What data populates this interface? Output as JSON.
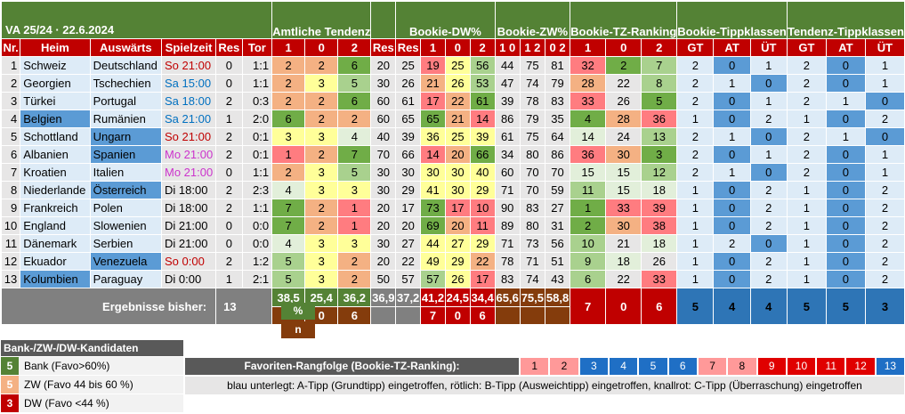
{
  "title": "VA 25/24 · 22.6.2024",
  "groups": [
    "Amtliche Tendenz",
    "Bookie-DW%",
    "Bookie-ZW%",
    "Bookie-TZ-Ranking",
    "Bookie-Tippklassen",
    "Tendenz-Tippklassen"
  ],
  "headers": [
    "Nr.",
    "Heim",
    "Auswärts",
    "Spielzeit",
    "Res",
    "Tor",
    "1",
    "0",
    "2",
    "Res",
    "Res",
    "1",
    "0",
    "2",
    "1 0",
    "1 2",
    "0 2",
    "1",
    "0",
    "2",
    "GT",
    "AT",
    "ÜT",
    "GT",
    "AT",
    "ÜT"
  ],
  "rows": [
    {
      "nr": "1",
      "home": "Schweiz",
      "away": "Deutschland",
      "time": "So 21:00",
      "res": "0",
      "tor": "1:1",
      "a1": "2",
      "a0": "2",
      "a2": "6",
      "ares": "20",
      "bres": "25",
      "d1": "19",
      "d0": "25",
      "d2": "56",
      "z10": "44",
      "z12": "75",
      "z02": "81",
      "r1": "32",
      "r0": "2",
      "r2": "7",
      "b1": "2",
      "b0": "0",
      "b2": "1",
      "t1": "2",
      "t0": "0",
      "t2": "1"
    },
    {
      "nr": "2",
      "home": "Georgien",
      "away": "Tschechien",
      "time": "Sa 15:00",
      "res": "0",
      "tor": "1:1",
      "a1": "2",
      "a0": "3",
      "a2": "5",
      "ares": "30",
      "bres": "26",
      "d1": "21",
      "d0": "26",
      "d2": "53",
      "z10": "47",
      "z12": "74",
      "z02": "79",
      "r1": "28",
      "r0": "22",
      "r2": "8",
      "b1": "2",
      "b0": "1",
      "b2": "0",
      "t1": "2",
      "t0": "0",
      "t2": "1"
    },
    {
      "nr": "3",
      "home": "Türkei",
      "away": "Portugal",
      "time": "Sa 18:00",
      "res": "2",
      "tor": "0:3",
      "a1": "2",
      "a0": "2",
      "a2": "6",
      "ares": "60",
      "bres": "61",
      "d1": "17",
      "d0": "22",
      "d2": "61",
      "z10": "39",
      "z12": "78",
      "z02": "83",
      "r1": "33",
      "r0": "26",
      "r2": "5",
      "b1": "2",
      "b0": "0",
      "b2": "1",
      "t1": "2",
      "t0": "1",
      "t2": "0"
    },
    {
      "nr": "4",
      "home": "Belgien",
      "away": "Rumänien",
      "time": "Sa 21:00",
      "res": "1",
      "tor": "2:0",
      "a1": "6",
      "a0": "2",
      "a2": "2",
      "ares": "60",
      "bres": "65",
      "d1": "65",
      "d0": "21",
      "d2": "14",
      "z10": "86",
      "z12": "79",
      "z02": "35",
      "r1": "4",
      "r0": "28",
      "r2": "36",
      "b1": "1",
      "b0": "0",
      "b2": "2",
      "t1": "1",
      "t0": "0",
      "t2": "2"
    },
    {
      "nr": "5",
      "home": "Schottland",
      "away": "Ungarn",
      "time": "So 21:00",
      "res": "2",
      "tor": "0:1",
      "a1": "3",
      "a0": "3",
      "a2": "4",
      "ares": "40",
      "bres": "39",
      "d1": "36",
      "d0": "25",
      "d2": "39",
      "z10": "61",
      "z12": "75",
      "z02": "64",
      "r1": "14",
      "r0": "24",
      "r2": "13",
      "b1": "2",
      "b0": "1",
      "b2": "0",
      "t1": "2",
      "t0": "1",
      "t2": "0"
    },
    {
      "nr": "6",
      "home": "Albanien",
      "away": "Spanien",
      "time": "Mo 21:00",
      "res": "2",
      "tor": "0:1",
      "a1": "1",
      "a0": "2",
      "a2": "7",
      "ares": "70",
      "bres": "66",
      "d1": "14",
      "d0": "20",
      "d2": "66",
      "z10": "34",
      "z12": "80",
      "z02": "86",
      "r1": "36",
      "r0": "30",
      "r2": "3",
      "b1": "2",
      "b0": "0",
      "b2": "1",
      "t1": "2",
      "t0": "0",
      "t2": "1"
    },
    {
      "nr": "7",
      "home": "Kroatien",
      "away": "Italien",
      "time": "Mo 21:00",
      "res": "0",
      "tor": "1:1",
      "a1": "2",
      "a0": "3",
      "a2": "5",
      "ares": "30",
      "bres": "30",
      "d1": "30",
      "d0": "30",
      "d2": "40",
      "z10": "60",
      "z12": "70",
      "z02": "70",
      "r1": "15",
      "r0": "15",
      "r2": "12",
      "b1": "2",
      "b0": "1",
      "b2": "0",
      "t1": "2",
      "t0": "0",
      "t2": "1"
    },
    {
      "nr": "8",
      "home": "Niederlande",
      "away": "Österreich",
      "time": "Di 18:00",
      "res": "2",
      "tor": "2:3",
      "a1": "4",
      "a0": "3",
      "a2": "3",
      "ares": "30",
      "bres": "29",
      "d1": "41",
      "d0": "30",
      "d2": "29",
      "z10": "71",
      "z12": "70",
      "z02": "59",
      "r1": "11",
      "r0": "15",
      "r2": "18",
      "b1": "1",
      "b0": "0",
      "b2": "2",
      "t1": "1",
      "t0": "0",
      "t2": "2"
    },
    {
      "nr": "9",
      "home": "Frankreich",
      "away": "Polen",
      "time": "Di 18:00",
      "res": "2",
      "tor": "1:1",
      "a1": "7",
      "a0": "2",
      "a2": "1",
      "ares": "20",
      "bres": "17",
      "d1": "73",
      "d0": "17",
      "d2": "10",
      "z10": "90",
      "z12": "83",
      "z02": "27",
      "r1": "1",
      "r0": "33",
      "r2": "39",
      "b1": "1",
      "b0": "0",
      "b2": "2",
      "t1": "1",
      "t0": "0",
      "t2": "2"
    },
    {
      "nr": "10",
      "home": "England",
      "away": "Slowenien",
      "time": "Di 21:00",
      "res": "0",
      "tor": "0:0",
      "a1": "7",
      "a0": "2",
      "a2": "1",
      "ares": "20",
      "bres": "20",
      "d1": "69",
      "d0": "20",
      "d2": "11",
      "z10": "89",
      "z12": "80",
      "z02": "31",
      "r1": "2",
      "r0": "30",
      "r2": "38",
      "b1": "1",
      "b0": "0",
      "b2": "2",
      "t1": "1",
      "t0": "0",
      "t2": "2"
    },
    {
      "nr": "11",
      "home": "Dänemark",
      "away": "Serbien",
      "time": "Di 21:00",
      "res": "0",
      "tor": "0:0",
      "a1": "4",
      "a0": "3",
      "a2": "3",
      "ares": "30",
      "bres": "27",
      "d1": "44",
      "d0": "27",
      "d2": "29",
      "z10": "71",
      "z12": "73",
      "z02": "56",
      "r1": "10",
      "r0": "21",
      "r2": "18",
      "b1": "1",
      "b0": "2",
      "b2": "0",
      "t1": "1",
      "t0": "0",
      "t2": "2"
    },
    {
      "nr": "12",
      "home": "Ekuador",
      "away": "Venezuela",
      "time": "So 0:00",
      "res": "2",
      "tor": "1:2",
      "a1": "5",
      "a0": "3",
      "a2": "2",
      "ares": "20",
      "bres": "22",
      "d1": "49",
      "d0": "29",
      "d2": "22",
      "z10": "78",
      "z12": "71",
      "z02": "51",
      "r1": "9",
      "r0": "18",
      "r2": "26",
      "b1": "1",
      "b0": "0",
      "b2": "2",
      "t1": "1",
      "t0": "0",
      "t2": "2"
    },
    {
      "nr": "13",
      "home": "Kolumbien",
      "away": "Paraguay",
      "time": "Di 0:00",
      "res": "1",
      "tor": "2:1",
      "a1": "5",
      "a0": "3",
      "a2": "2",
      "ares": "50",
      "bres": "57",
      "d1": "57",
      "d0": "26",
      "d2": "17",
      "z10": "83",
      "z12": "74",
      "z02": "43",
      "r1": "6",
      "r0": "22",
      "r2": "33",
      "b1": "1",
      "b0": "0",
      "b2": "2",
      "t1": "1",
      "t0": "0",
      "t2": "2"
    }
  ],
  "summary": {
    "label": "Ergebnisse bisher:",
    "count": "13",
    "pct_label": "%",
    "favo_label": "n Favo",
    "pct": [
      "38,5",
      "25,4",
      "36,2",
      "36,9",
      "37,2",
      "41,2",
      "24,5",
      "34,4",
      "65,6",
      "75,5",
      "58,8"
    ],
    "favo": [
      "7",
      "0",
      "6",
      "",
      "",
      "7",
      "0",
      "6"
    ],
    "rank": [
      "7",
      "0",
      "6"
    ],
    "tipp": [
      "5",
      "4",
      "4"
    ],
    "tend": [
      "5",
      "5",
      "3"
    ]
  },
  "legend": {
    "title": "Bank-/ZW-/DW-Kandidaten",
    "items": [
      {
        "n": "5",
        "text": "Bank (Favo>60%)",
        "color": "#548235"
      },
      {
        "n": "5",
        "text": "ZW (Favo 44 bis 60 %)",
        "color": "#f4b183"
      },
      {
        "n": "3",
        "text": "DW (Favo <44 %)",
        "color": "#c00000"
      }
    ]
  },
  "favorites": {
    "label": "Favoriten-Rangfolge (Bookie-TZ-Ranking):",
    "nums": [
      "1",
      "2",
      "3",
      "4",
      "5",
      "6",
      "7",
      "8",
      "9",
      "10",
      "11",
      "12",
      "13"
    ]
  },
  "note": "blau unterlegt: A-Tipp (Grundtipp) eingetroffen, rötlich: B-Tipp (Ausweichtipp) eingetroffen, knallrot: C-Tipp (Überraschung) eingetroffen"
}
